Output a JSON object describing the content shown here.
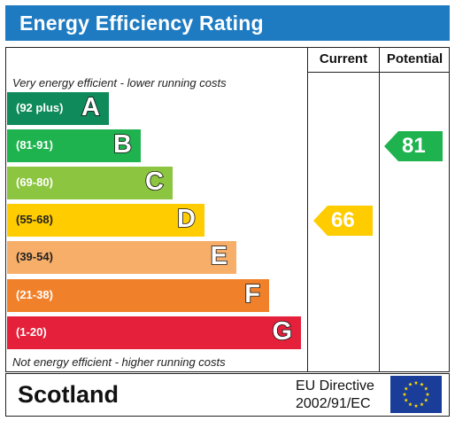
{
  "title": "Energy Efficiency Rating",
  "columns": {
    "current": "Current",
    "potential": "Potential"
  },
  "top_note": "Very energy efficient - lower running costs",
  "bottom_note": "Not energy efficient - higher running costs",
  "bands": [
    {
      "letter": "A",
      "range": "(92 plus)",
      "color": "#0f8a5a"
    },
    {
      "letter": "B",
      "range": "(81-91)",
      "color": "#1eb34f"
    },
    {
      "letter": "C",
      "range": "(69-80)",
      "color": "#8cc53f"
    },
    {
      "letter": "D",
      "range": "(55-68)",
      "color": "#ffcc00"
    },
    {
      "letter": "E",
      "range": "(39-54)",
      "color": "#f7ae69"
    },
    {
      "letter": "F",
      "range": "(21-38)",
      "color": "#f0812a"
    },
    {
      "letter": "G",
      "range": "(1-20)",
      "color": "#e5203a"
    }
  ],
  "ratings": {
    "current": {
      "value": "66",
      "band": "D",
      "color": "#ffcc00"
    },
    "potential": {
      "value": "81",
      "band": "B",
      "color": "#1eb34f"
    }
  },
  "footer": {
    "country": "Scotland",
    "directive_line1": "EU Directive",
    "directive_line2": "2002/91/EC",
    "flag_icon": "eu-flag-icon",
    "flag_color": "#1a3d99",
    "star_color": "#ffdd00"
  },
  "title_color": "#1e7bc2"
}
